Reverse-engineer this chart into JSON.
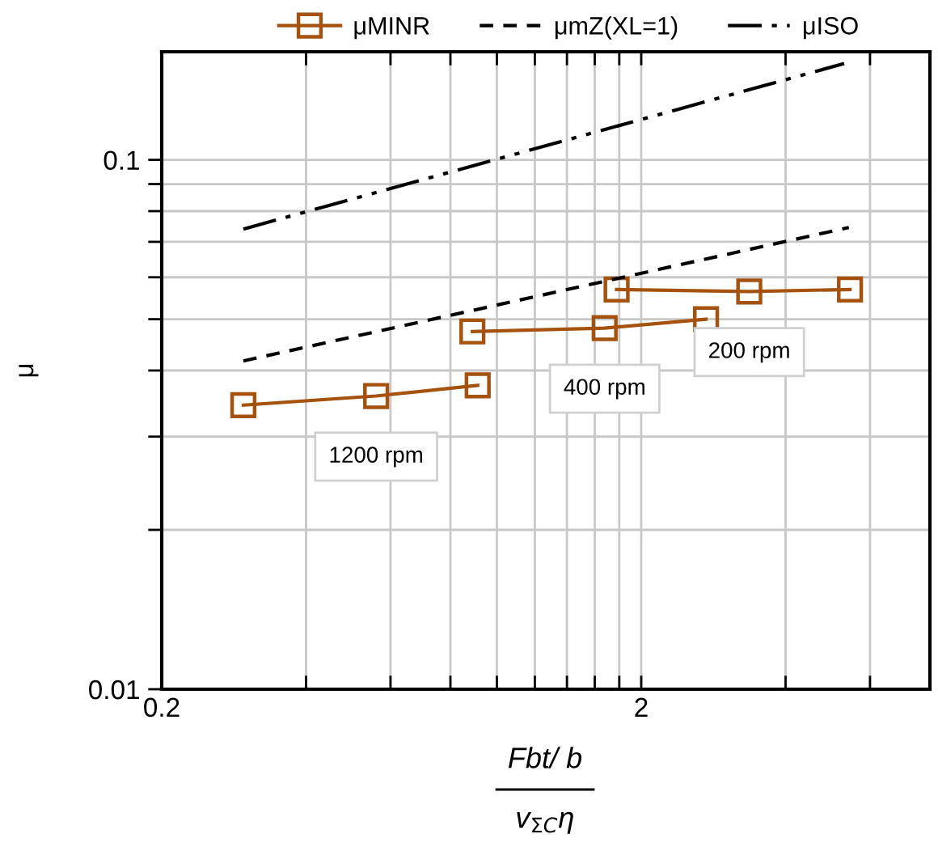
{
  "chart_data": {
    "type": "line",
    "xlabel": "Fbt/ b\nv$_{ΣC}$η",
    "ylabel": "μ",
    "log": "xy",
    "grid": true,
    "legend": "top",
    "xlim": [
      0.2,
      8
    ],
    "xticks": [
      0.2,
      {
        "value": 0.4,
        "label": null
      },
      {
        "value": 0.6,
        "label": null
      },
      {
        "value": 0.8,
        "label": null
      },
      {
        "value": 1.0,
        "label": null
      },
      {
        "value": 1.2,
        "label": null
      },
      {
        "value": 1.4,
        "label": null
      },
      {
        "value": 1.6,
        "label": null
      },
      {
        "value": 1.8,
        "label": null
      },
      2,
      {
        "value": 4,
        "label": null
      },
      {
        "value": 6,
        "label": null
      }
    ],
    "ylim": [
      0.01,
      0.16
    ],
    "yticks": [
      0.01,
      {
        "value": 0.02,
        "label": null
      },
      {
        "value": 0.03,
        "label": null
      },
      {
        "value": 0.04,
        "label": null
      },
      {
        "value": 0.05,
        "label": null
      },
      {
        "value": 0.06,
        "label": null
      },
      {
        "value": 0.07,
        "label": null
      },
      {
        "value": 0.08,
        "label": null
      },
      {
        "value": 0.09,
        "label": null
      },
      0.1
    ],
    "series": [
      {
        "name": "μMINR",
        "color": "#a5520f",
        "marker": "square",
        "line_style": "solid",
        "x": [
          0.296,
          0.56,
          0.912,
          null,
          0.889,
          1.678,
          2.73,
          null,
          1.777,
          3.36,
          5.45
        ],
        "values": [
          0.0344,
          0.0358,
          0.0375,
          null,
          0.0474,
          0.0481,
          0.05,
          null,
          0.0569,
          0.0564,
          0.0569
        ]
      },
      {
        "name": "μmZ(XL=1)",
        "color": "#000000",
        "marker": "none",
        "line_style": "dashed",
        "x": [
          0.296,
          5.42
        ],
        "values": [
          0.0417,
          0.0745
        ]
      },
      {
        "name": "μISO",
        "color": "#000000",
        "marker": "none",
        "line_style": "dashdotdot",
        "x": [
          0.296,
          5.3
        ],
        "values": [
          0.074,
          0.152
        ]
      }
    ],
    "annotations": [
      "1200 rpm",
      "400 rpm",
      "200 rpm"
    ]
  }
}
